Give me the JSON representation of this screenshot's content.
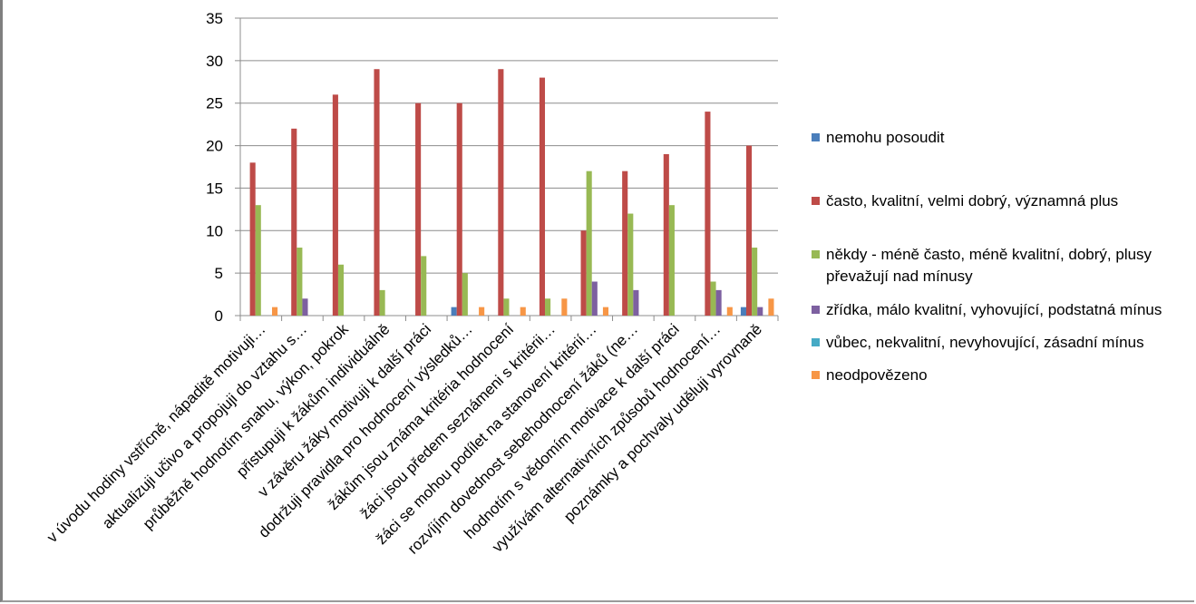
{
  "chart_data": {
    "type": "bar",
    "title": "",
    "xlabel": "",
    "ylabel": "",
    "ylim": [
      0,
      35
    ],
    "yticks": [
      "0",
      "5",
      "10",
      "15",
      "20",
      "25",
      "30",
      "35"
    ],
    "grid": true,
    "legend_position": "right",
    "categories": [
      "v úvodu hodiny vstřícně, nápaditě motivuji…",
      "aktualizuji učivo a propojuji do vztahu s…",
      "průběžně hodnotím snahu, výkon, pokrok",
      "přistupuji k žákům individuálně",
      "v závěru žáky motivuji k další práci",
      "dodržuji pravidla pro hodnocení výsledků…",
      "žákům jsou známa kritéria hodnocení",
      "žáci jsou předem seznámeni s kritérii…",
      "žáci se mohou podílet na stanovení kritérií…",
      "rozvíjím dovednost sebehodnocení žáků (ne…",
      "hodnotím s vědomím motivace k další práci",
      "využívám alternativních způsobů hodnocení…",
      "poznámky a pochvaly uděluji vyrovnaně"
    ],
    "series": [
      {
        "name": "nemohu posoudit",
        "color": "#4a7ebb",
        "values": [
          0,
          0,
          0,
          0,
          0,
          1,
          0,
          0,
          0,
          0,
          0,
          0,
          1
        ]
      },
      {
        "name": "často, kvalitní, velmi dobrý, významná plus",
        "color": "#be4b48",
        "values": [
          18,
          22,
          26,
          29,
          25,
          25,
          29,
          28,
          10,
          17,
          19,
          24,
          20
        ]
      },
      {
        "name": "někdy - méně často, méně kvalitní, dobrý, plusy převažují nad mínusy",
        "color": "#98b954",
        "values": [
          13,
          8,
          6,
          3,
          7,
          5,
          2,
          2,
          17,
          12,
          13,
          4,
          8
        ]
      },
      {
        "name": "zřídka, málo kvalitní, vyhovující, podstatná mínus",
        "color": "#7d60a0",
        "values": [
          0,
          2,
          0,
          0,
          0,
          0,
          0,
          0,
          4,
          3,
          0,
          3,
          1
        ]
      },
      {
        "name": "vůbec, nekvalitní, nevyhovující, zásadní mínus",
        "color": "#46aac5",
        "values": [
          0,
          0,
          0,
          0,
          0,
          0,
          0,
          0,
          0,
          0,
          0,
          0,
          0
        ]
      },
      {
        "name": "neodpovězeno",
        "color": "#f79646",
        "values": [
          1,
          0,
          0,
          0,
          0,
          1,
          1,
          2,
          1,
          0,
          0,
          1,
          2
        ]
      }
    ]
  }
}
